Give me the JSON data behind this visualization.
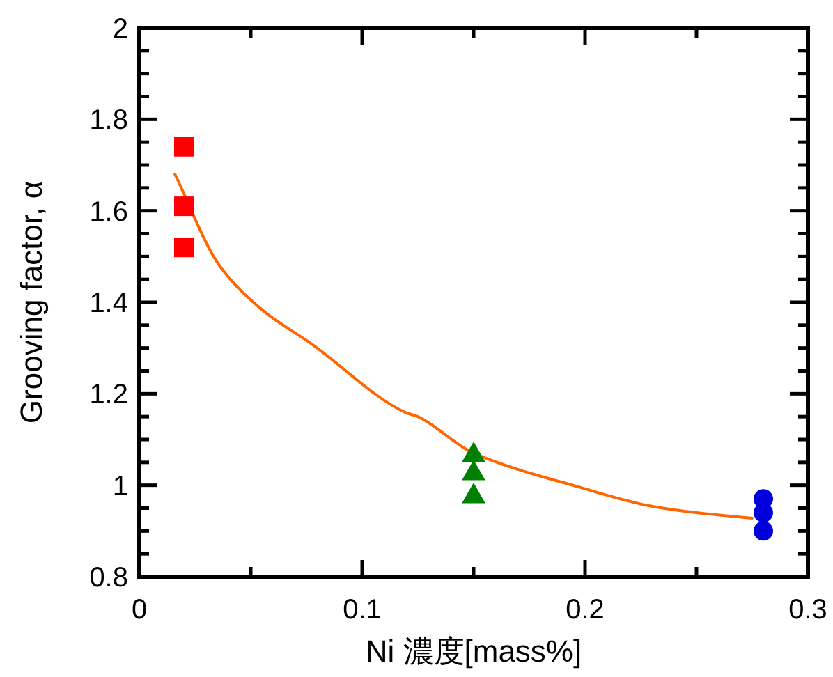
{
  "chart_data": {
    "type": "scatter",
    "xlabel": "Ni 濃度[mass%]",
    "ylabel": "Grooving factor, α",
    "xlim": [
      0,
      0.3
    ],
    "ylim": [
      0.8,
      2
    ],
    "xticks": [
      0,
      {
        "value": 0.05,
        "label": null
      },
      0.1,
      {
        "value": 0.15,
        "label": null
      },
      0.2,
      {
        "value": 0.25,
        "label": null
      },
      0.3
    ],
    "yticks": [
      0.8,
      {
        "value": 0.85,
        "label": null
      },
      {
        "value": 0.9,
        "label": null
      },
      {
        "value": 0.95,
        "label": null
      },
      1,
      {
        "value": 1.05,
        "label": null
      },
      {
        "value": 1.1,
        "label": null
      },
      {
        "value": 1.15,
        "label": null
      },
      1.2,
      {
        "value": 1.25,
        "label": null
      },
      {
        "value": 1.3,
        "label": null
      },
      {
        "value": 1.35,
        "label": null
      },
      1.4,
      {
        "value": 1.45,
        "label": null
      },
      {
        "value": 1.5,
        "label": null
      },
      {
        "value": 1.55,
        "label": null
      },
      1.6,
      {
        "value": 1.65,
        "label": null
      },
      {
        "value": 1.7,
        "label": null
      },
      {
        "value": 1.75,
        "label": null
      },
      1.8,
      {
        "value": 1.85,
        "label": null
      },
      {
        "value": 1.9,
        "label": null
      },
      {
        "value": 1.95,
        "label": null
      },
      2
    ],
    "grid": false,
    "series": [
      {
        "type": "line",
        "color": "#ff6600",
        "marker": "none",
        "x": [
          0.016,
          0.036,
          0.056,
          0.077,
          0.119,
          0.125,
          0.15,
          0.198,
          0.229,
          0.25,
          0.275
        ],
        "values": [
          1.68,
          1.48,
          1.38,
          1.31,
          1.16,
          1.15,
          1.07,
          0.995,
          0.955,
          0.94,
          0.928
        ]
      },
      {
        "color": "#ff0000",
        "marker": "square",
        "x": [
          0.02,
          0.02,
          0.02
        ],
        "values": [
          1.74,
          1.61,
          1.52
        ]
      },
      {
        "color": "#008000",
        "marker": "triangle",
        "x": [
          0.15,
          0.15,
          0.15
        ],
        "values": [
          1.07,
          1.03,
          0.98
        ]
      },
      {
        "color": "#0000dd",
        "marker": "circle",
        "x": [
          0.28,
          0.28,
          0.28
        ],
        "values": [
          0.97,
          0.94,
          0.9
        ]
      }
    ]
  }
}
